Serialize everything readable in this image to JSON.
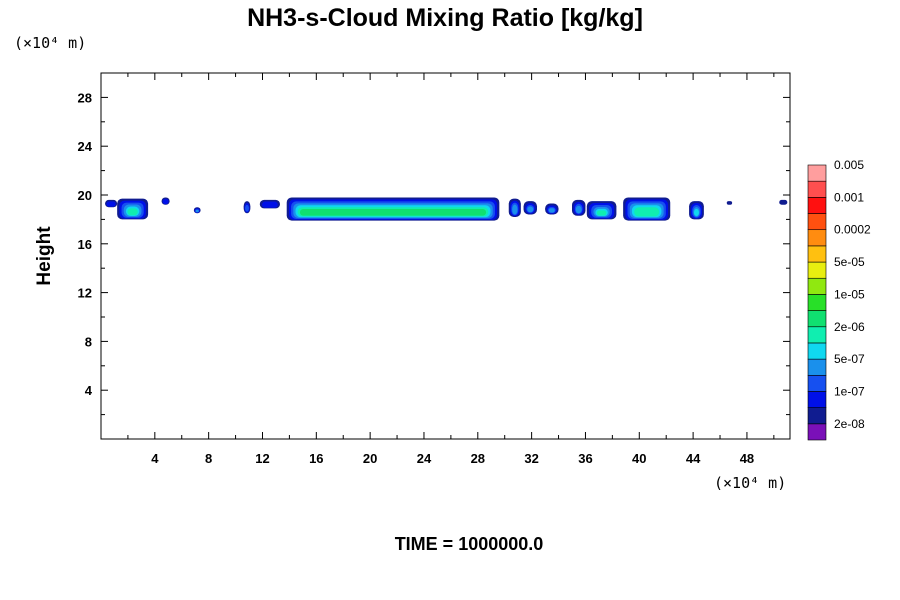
{
  "chart_data": {
    "type": "contour",
    "title": "NH3-s-Cloud Mixing Ratio [kg/kg]",
    "ylabel": "Height",
    "xlabel": "",
    "x_unit": "(×10⁴ m)",
    "y_unit": "(×10⁴ m)",
    "xlim": [
      0,
      51.2
    ],
    "ylim": [
      0,
      30
    ],
    "x_ticks": [
      4,
      8,
      12,
      16,
      20,
      24,
      28,
      32,
      36,
      40,
      44,
      48
    ],
    "y_ticks": [
      4,
      8,
      12,
      16,
      20,
      24,
      28
    ],
    "colorbar": {
      "colors": [
        "#7a10b8",
        "#101c90",
        "#0010e8",
        "#1650f0",
        "#1a90ec",
        "#10d8f0",
        "#10eeb0",
        "#10e070",
        "#28e028",
        "#90e810",
        "#e8ee10",
        "#ffc010",
        "#ff8c10",
        "#ff5010",
        "#ff1010",
        "#ff4f4f",
        "#ff9e9e"
      ],
      "labels": [
        "2e-08",
        "1e-07",
        "5e-07",
        "2e-06",
        "1e-05",
        "5e-05",
        "0.0002",
        "0.001",
        "0.005"
      ]
    },
    "blobs": [
      {
        "x0": 0.3,
        "x1": 1.2,
        "y0": 19.0,
        "y1": 19.6,
        "level": 2
      },
      {
        "x0": 1.2,
        "x1": 3.5,
        "y0": 18.0,
        "y1": 19.7,
        "level": 6
      },
      {
        "x0": 4.5,
        "x1": 5.1,
        "y0": 19.2,
        "y1": 19.8,
        "level": 2
      },
      {
        "x0": 6.9,
        "x1": 7.4,
        "y0": 18.5,
        "y1": 19.0,
        "level": 4
      },
      {
        "x0": 10.6,
        "x1": 11.1,
        "y0": 18.5,
        "y1": 19.5,
        "level": 3
      },
      {
        "x0": 11.8,
        "x1": 13.3,
        "y0": 18.9,
        "y1": 19.6,
        "level": 2
      },
      {
        "x0": 13.8,
        "x1": 29.6,
        "y0": 17.9,
        "y1": 19.8,
        "level": 7
      },
      {
        "x0": 30.3,
        "x1": 31.2,
        "y0": 18.2,
        "y1": 19.7,
        "level": 4
      },
      {
        "x0": 31.4,
        "x1": 32.4,
        "y0": 18.4,
        "y1": 19.5,
        "level": 4
      },
      {
        "x0": 33.0,
        "x1": 34.0,
        "y0": 18.4,
        "y1": 19.3,
        "level": 4
      },
      {
        "x0": 35.0,
        "x1": 36.0,
        "y0": 18.3,
        "y1": 19.6,
        "level": 4
      },
      {
        "x0": 36.1,
        "x1": 38.3,
        "y0": 18.0,
        "y1": 19.5,
        "level": 6
      },
      {
        "x0": 38.8,
        "x1": 42.3,
        "y0": 17.9,
        "y1": 19.8,
        "level": 6
      },
      {
        "x0": 43.7,
        "x1": 44.8,
        "y0": 18.0,
        "y1": 19.5,
        "level": 5
      },
      {
        "x0": 46.5,
        "x1": 46.9,
        "y0": 19.2,
        "y1": 19.5,
        "level": 1
      },
      {
        "x0": 50.4,
        "x1": 51.0,
        "y0": 19.2,
        "y1": 19.6,
        "level": 1
      }
    ],
    "annotation": "TIME = 1000000.0"
  }
}
